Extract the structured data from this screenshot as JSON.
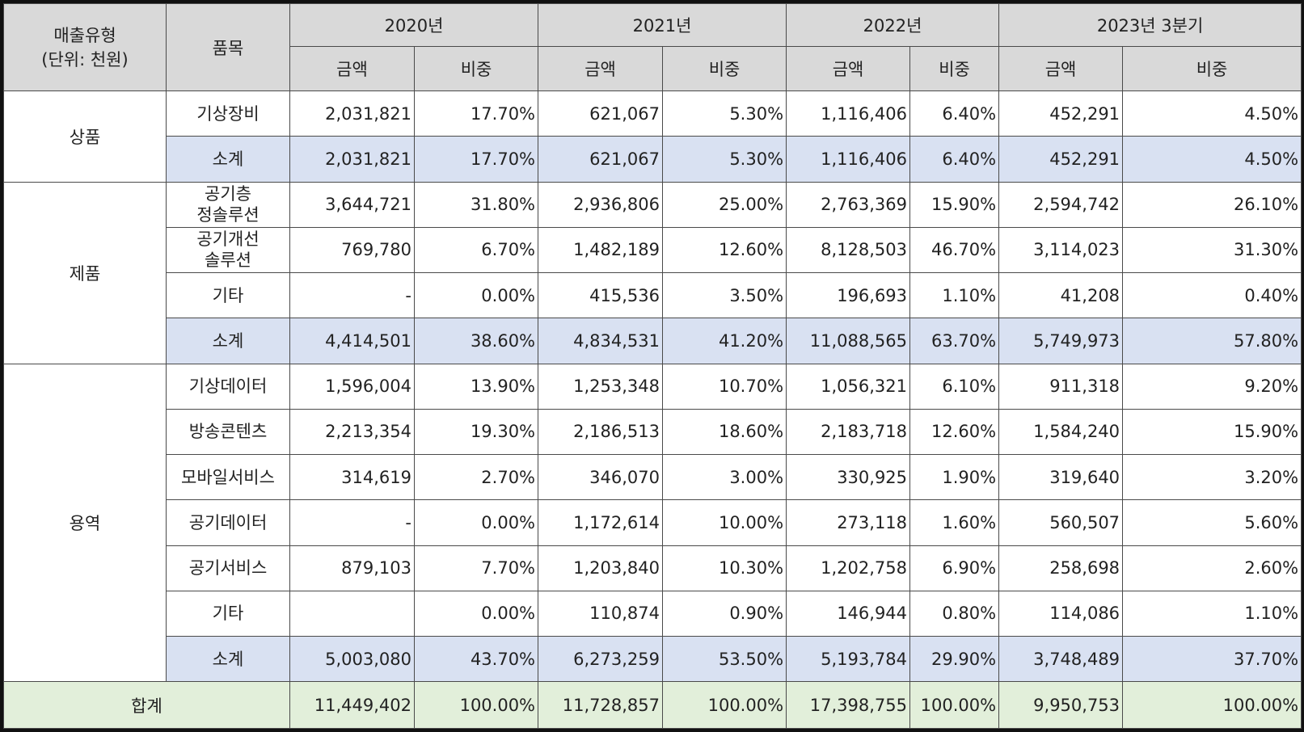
{
  "header": {
    "type_label_line1": "매출유형",
    "type_label_line2": "(단위: 천원)",
    "item_label": "품목",
    "years": [
      "2020년",
      "2021년",
      "2022년",
      "2023년 3분기"
    ],
    "amount_label": "금액",
    "ratio_label": "비중"
  },
  "groups": [
    {
      "category": "상품",
      "rows": [
        {
          "item": [
            "기상장비"
          ],
          "values": [
            "2,031,821",
            "17.70%",
            "621,067",
            "5.30%",
            "1,116,406",
            "6.40%",
            "452,291",
            "4.50%"
          ]
        }
      ],
      "subtotal": {
        "item": "소계",
        "values": [
          "2,031,821",
          "17.70%",
          "621,067",
          "5.30%",
          "1,116,406",
          "6.40%",
          "452,291",
          "4.50%"
        ]
      }
    },
    {
      "category": "제품",
      "rows": [
        {
          "item": [
            "공기층",
            "정솔루션"
          ],
          "values": [
            "3,644,721",
            "31.80%",
            "2,936,806",
            "25.00%",
            "2,763,369",
            "15.90%",
            "2,594,742",
            "26.10%"
          ]
        },
        {
          "item": [
            "공기개선",
            "솔루션"
          ],
          "values": [
            "769,780",
            "6.70%",
            "1,482,189",
            "12.60%",
            "8,128,503",
            "46.70%",
            "3,114,023",
            "31.30%"
          ]
        },
        {
          "item": [
            "기타"
          ],
          "values": [
            "-",
            "0.00%",
            "415,536",
            "3.50%",
            "196,693",
            "1.10%",
            "41,208",
            "0.40%"
          ]
        }
      ],
      "subtotal": {
        "item": "소계",
        "values": [
          "4,414,501",
          "38.60%",
          "4,834,531",
          "41.20%",
          "11,088,565",
          "63.70%",
          "5,749,973",
          "57.80%"
        ]
      }
    },
    {
      "category": "용역",
      "rows": [
        {
          "item": [
            "기상데이터"
          ],
          "values": [
            "1,596,004",
            "13.90%",
            "1,253,348",
            "10.70%",
            "1,056,321",
            "6.10%",
            "911,318",
            "9.20%"
          ]
        },
        {
          "item": [
            "방송콘텐츠"
          ],
          "values": [
            "2,213,354",
            "19.30%",
            "2,186,513",
            "18.60%",
            "2,183,718",
            "12.60%",
            "1,584,240",
            "15.90%"
          ]
        },
        {
          "item": [
            "모바일서비스"
          ],
          "values": [
            "314,619",
            "2.70%",
            "346,070",
            "3.00%",
            "330,925",
            "1.90%",
            "319,640",
            "3.20%"
          ]
        },
        {
          "item": [
            "공기데이터"
          ],
          "values": [
            "-",
            "0.00%",
            "1,172,614",
            "10.00%",
            "273,118",
            "1.60%",
            "560,507",
            "5.60%"
          ]
        },
        {
          "item": [
            "공기서비스"
          ],
          "values": [
            "879,103",
            "7.70%",
            "1,203,840",
            "10.30%",
            "1,202,758",
            "6.90%",
            "258,698",
            "2.60%"
          ]
        },
        {
          "item": [
            "기타"
          ],
          "values": [
            "",
            "0.00%",
            "110,874",
            "0.90%",
            "146,944",
            "0.80%",
            "114,086",
            "1.10%"
          ]
        }
      ],
      "subtotal": {
        "item": "소계",
        "values": [
          "5,003,080",
          "43.70%",
          "6,273,259",
          "53.50%",
          "5,193,784",
          "29.90%",
          "3,748,489",
          "37.70%"
        ]
      }
    }
  ],
  "total": {
    "label": "합계",
    "values": [
      "11,449,402",
      "100.00%",
      "11,728,857",
      "100.00%",
      "17,398,755",
      "100.00%",
      "9,950,753",
      "100.00%"
    ]
  },
  "colors": {
    "header_bg": "#d9d9d9",
    "subtotal_bg": "#d9e1f2",
    "total_bg": "#e2efda",
    "border": "#4a4a4a"
  }
}
